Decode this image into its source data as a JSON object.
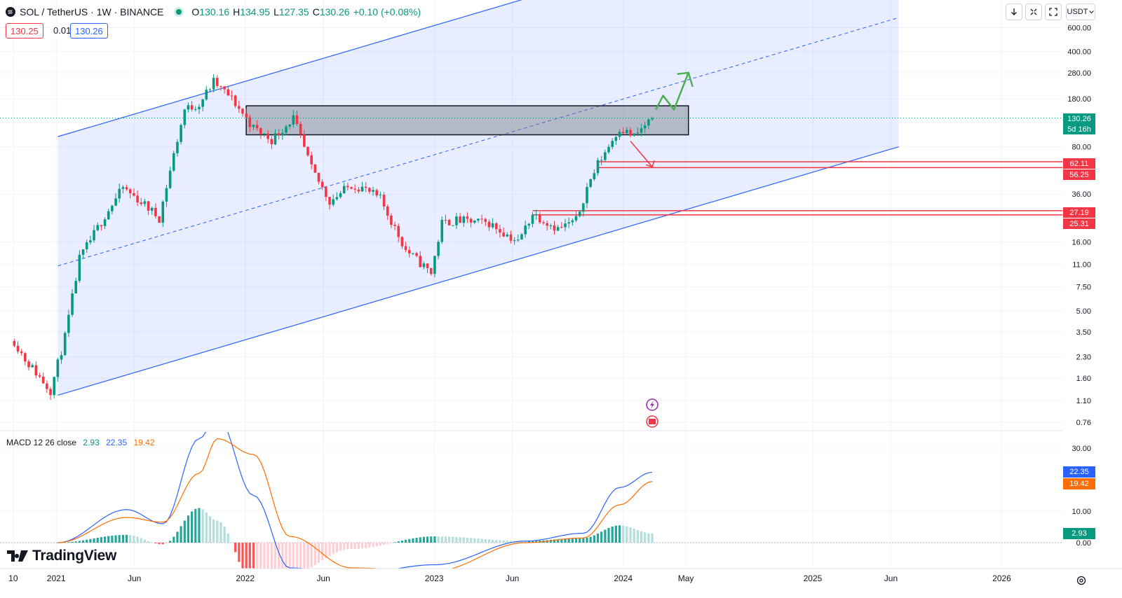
{
  "header": {
    "symbol": "SOL / TetherUS · 1W · BINANCE",
    "ohlc": [
      {
        "k": "O",
        "v": "130.16"
      },
      {
        "k": "H",
        "v": "134.95"
      },
      {
        "k": "L",
        "v": "127.35"
      },
      {
        "k": "C",
        "v": "130.26"
      }
    ],
    "change": "+0.10 (+0.08%)",
    "bid": "130.25",
    "spread": "0.01",
    "ask": "130.26"
  },
  "toolbar": {
    "currency": "USDT",
    "buttons": [
      "arrow-down-icon",
      "collapse-icon",
      "fullscreen-icon"
    ]
  },
  "price_axis": {
    "labels": [
      "600.00",
      "400.00",
      "280.00",
      "180.00",
      "80.00",
      "36.00",
      "16.00",
      "11.00",
      "7.50",
      "5.00",
      "3.50",
      "2.30",
      "1.60",
      "1.10",
      "0.76"
    ],
    "current_price": "130.26",
    "countdown": "5d 16h",
    "level_labels": [
      "62.11",
      "56.25",
      "27.19",
      "25.31"
    ]
  },
  "time_axis": {
    "labels": [
      "10",
      "2021",
      "Jun",
      "2022",
      "Jun",
      "2023",
      "Jun",
      "2024",
      "May",
      "2025",
      "Jun",
      "2026"
    ]
  },
  "macd": {
    "title": "MACD 12 26 close",
    "hist": "2.93",
    "macd": "22.35",
    "signal": "19.42",
    "axis_labels": [
      "30.00",
      "10.00",
      "0.00"
    ]
  },
  "branding": {
    "logo": "TradingView"
  },
  "colors": {
    "up": "#089981",
    "down": "#f23645",
    "channel": "#2962ff",
    "macd_line": "#2962ff",
    "signal_line": "#ff6d00",
    "arrow_up": "#4caf50",
    "arrow_down": "#f23645"
  },
  "chart_data": {
    "type": "candlestick",
    "scale": "log",
    "ylim": [
      0.7,
      850
    ],
    "price_series": [
      {
        "x": "2020-10-12",
        "y": 3.0
      },
      {
        "x": "2020-11-02",
        "y": 2.2
      },
      {
        "x": "2020-12-21",
        "y": 1.3
      },
      {
        "x": "2021-01-18",
        "y": 3.2
      },
      {
        "x": "2021-02-15",
        "y": 12
      },
      {
        "x": "2021-04-05",
        "y": 25
      },
      {
        "x": "2021-05-10",
        "y": 40
      },
      {
        "x": "2021-06-21",
        "y": 30
      },
      {
        "x": "2021-07-19",
        "y": 24
      },
      {
        "x": "2021-08-16",
        "y": 70
      },
      {
        "x": "2021-09-06",
        "y": 150
      },
      {
        "x": "2021-10-04",
        "y": 165
      },
      {
        "x": "2021-11-01",
        "y": 240
      },
      {
        "x": "2021-12-06",
        "y": 180
      },
      {
        "x": "2022-01-17",
        "y": 110
      },
      {
        "x": "2022-02-21",
        "y": 90
      },
      {
        "x": "2022-04-04",
        "y": 130
      },
      {
        "x": "2022-05-09",
        "y": 55
      },
      {
        "x": "2022-06-13",
        "y": 32
      },
      {
        "x": "2022-07-25",
        "y": 42
      },
      {
        "x": "2022-08-15",
        "y": 40
      },
      {
        "x": "2022-09-19",
        "y": 33
      },
      {
        "x": "2022-11-07",
        "y": 14
      },
      {
        "x": "2022-12-26",
        "y": 9.5
      },
      {
        "x": "2023-01-16",
        "y": 22
      },
      {
        "x": "2023-02-13",
        "y": 23
      },
      {
        "x": "2023-04-17",
        "y": 22
      },
      {
        "x": "2023-06-12",
        "y": 16
      },
      {
        "x": "2023-07-10",
        "y": 26
      },
      {
        "x": "2023-08-28",
        "y": 20
      },
      {
        "x": "2023-10-02",
        "y": 23
      },
      {
        "x": "2023-10-23",
        "y": 40
      },
      {
        "x": "2023-11-13",
        "y": 60
      },
      {
        "x": "2023-12-25",
        "y": 110
      },
      {
        "x": "2024-01-22",
        "y": 95
      },
      {
        "x": "2024-02-26",
        "y": 130.26
      }
    ],
    "macd_series": [
      {
        "x": "2021-01-04",
        "macd": 0.0,
        "signal": 0.0
      },
      {
        "x": "2021-05-17",
        "macd": 10.5,
        "signal": 8.0
      },
      {
        "x": "2021-07-26",
        "macd": 6.0,
        "signal": 6.5
      },
      {
        "x": "2021-10-04",
        "macd": 33.0,
        "signal": 22.0
      },
      {
        "x": "2021-11-08",
        "macd": 40.0,
        "signal": 33.0
      },
      {
        "x": "2022-01-17",
        "macd": 15.0,
        "signal": 28.0
      },
      {
        "x": "2022-03-28",
        "macd": -8.0,
        "signal": 2.0
      },
      {
        "x": "2022-07-25",
        "macd": -10.0,
        "signal": -8.0
      },
      {
        "x": "2023-01-02",
        "macd": -7.0,
        "signal": -9.0
      },
      {
        "x": "2023-06-26",
        "macd": 0.5,
        "signal": 0.0
      },
      {
        "x": "2023-10-16",
        "macd": 3.0,
        "signal": 1.5
      },
      {
        "x": "2023-12-25",
        "macd": 17.5,
        "signal": 12.0
      },
      {
        "x": "2024-02-26",
        "macd": 22.35,
        "signal": 19.42
      }
    ],
    "horizontal_levels": [
      62.11,
      56.25,
      27.19,
      25.31
    ],
    "zone": {
      "low": 98,
      "high": 160
    }
  }
}
